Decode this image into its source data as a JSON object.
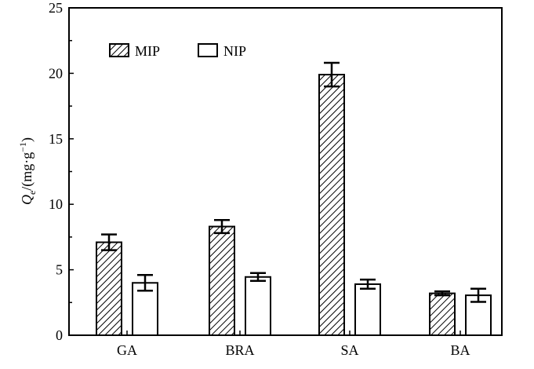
{
  "chart_data": {
    "type": "bar",
    "ylabel": "Q",
    "ylabel_sub": "e",
    "ylabel_units": "/(mg·g",
    "ylabel_sup": "−1",
    "ylabel_close": ")",
    "ylim": [
      0,
      25
    ],
    "yticks": [
      0,
      5,
      10,
      15,
      20,
      25
    ],
    "categories": [
      "GA",
      "BRA",
      "SA",
      "BA"
    ],
    "series": [
      {
        "name": "MIP",
        "pattern": "hatched",
        "values": [
          7.1,
          8.3,
          19.9,
          3.2
        ],
        "errors": [
          0.6,
          0.5,
          0.9,
          0.15
        ]
      },
      {
        "name": "NIP",
        "pattern": "open",
        "values": [
          4.0,
          4.45,
          3.9,
          3.05
        ],
        "errors": [
          0.6,
          0.3,
          0.35,
          0.5
        ]
      }
    ],
    "legend_position": "top-left",
    "grid": false
  },
  "colors": {
    "axis": "#000000",
    "bar_fill": "#ffffff",
    "hatch": "#000000"
  }
}
